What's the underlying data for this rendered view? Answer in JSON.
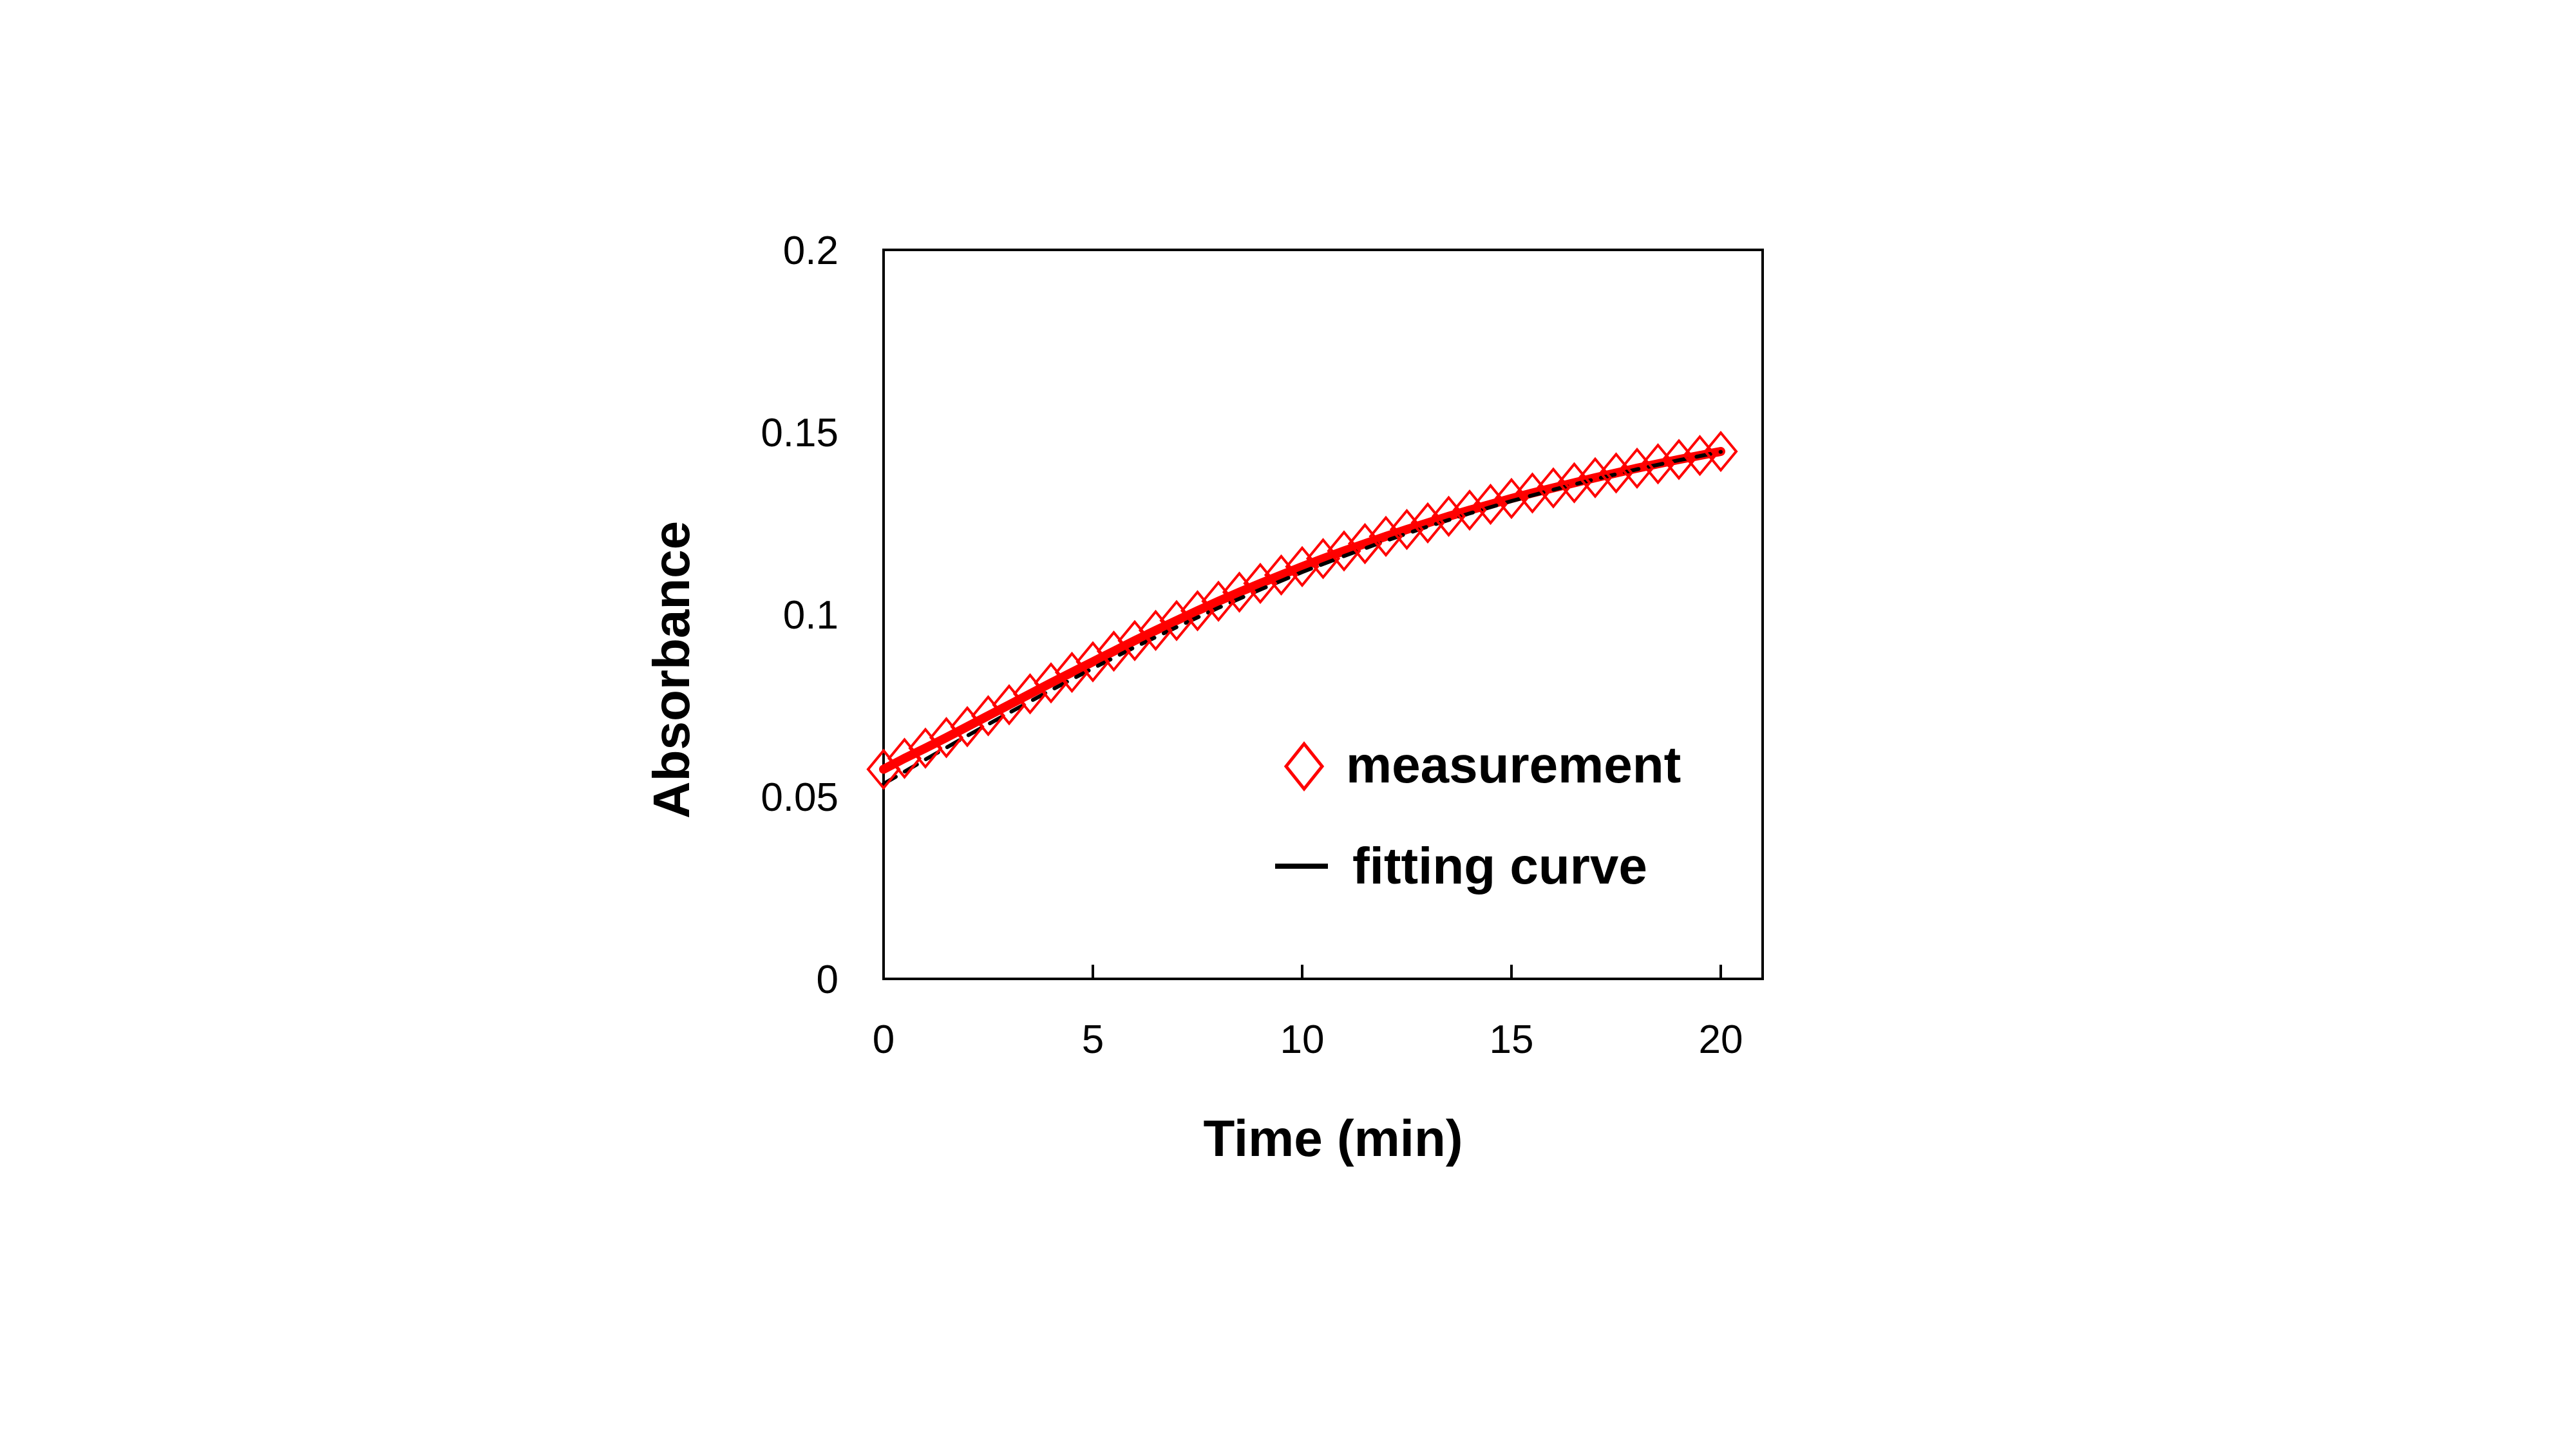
{
  "chart_data": {
    "type": "scatter",
    "title": "",
    "xlabel": "Time (min)",
    "ylabel": "Absorbance",
    "xlim": [
      0,
      21
    ],
    "ylim": [
      0,
      0.2
    ],
    "xticks": [
      0,
      5,
      10,
      15,
      20
    ],
    "xtick_labels": [
      "0",
      "5",
      "10",
      "15",
      "20"
    ],
    "yticks": [
      0,
      0.05,
      0.1,
      0.15,
      0.2
    ],
    "ytick_labels": [
      "0",
      "0.05",
      "0.1",
      "0.15",
      "0.2"
    ],
    "grid": false,
    "legend_position": "bottom-right",
    "series": [
      {
        "name": "measurement",
        "kind": "scatter",
        "marker": "diamond-open",
        "color": "#ff0000",
        "x": [
          0,
          0.5,
          1,
          1.5,
          2,
          2.5,
          3,
          3.5,
          4,
          4.5,
          5,
          5.5,
          6,
          6.5,
          7,
          7.5,
          8,
          8.5,
          9,
          9.5,
          10,
          10.5,
          11,
          11.5,
          12,
          12.5,
          13,
          13.5,
          14,
          14.5,
          15,
          15.5,
          16,
          16.5,
          17,
          17.5,
          18,
          18.5,
          19,
          19.5,
          20
        ],
        "y": [
          0.0575,
          0.0605,
          0.0633,
          0.0662,
          0.0692,
          0.0722,
          0.0752,
          0.0782,
          0.0812,
          0.0841,
          0.087,
          0.0899,
          0.0928,
          0.0956,
          0.0983,
          0.101,
          0.1036,
          0.1061,
          0.1085,
          0.1108,
          0.1131,
          0.1153,
          0.1174,
          0.1194,
          0.1214,
          0.1233,
          0.1251,
          0.1269,
          0.1286,
          0.1302,
          0.1318,
          0.1333,
          0.1347,
          0.1361,
          0.1375,
          0.1388,
          0.1401,
          0.1413,
          0.1425,
          0.1436,
          0.1447
        ]
      },
      {
        "name": "fitting curve",
        "kind": "line",
        "color": "#000000",
        "x": [
          0,
          1,
          2,
          3,
          4,
          5,
          6,
          7,
          8,
          9,
          10,
          11,
          12,
          13,
          14,
          15,
          16,
          17,
          18,
          19,
          20
        ],
        "y": [
          0.0535,
          0.0602,
          0.0667,
          0.073,
          0.0792,
          0.0852,
          0.091,
          0.0965,
          0.1018,
          0.1068,
          0.1116,
          0.116,
          0.1202,
          0.1241,
          0.1277,
          0.1311,
          0.1342,
          0.1371,
          0.1398,
          0.1423,
          0.1446
        ]
      }
    ],
    "colors": {
      "measurement": "#ff0000",
      "measurement_trend": "#ff0000",
      "fitting_curve": "#000000",
      "axes": "#000000"
    }
  }
}
